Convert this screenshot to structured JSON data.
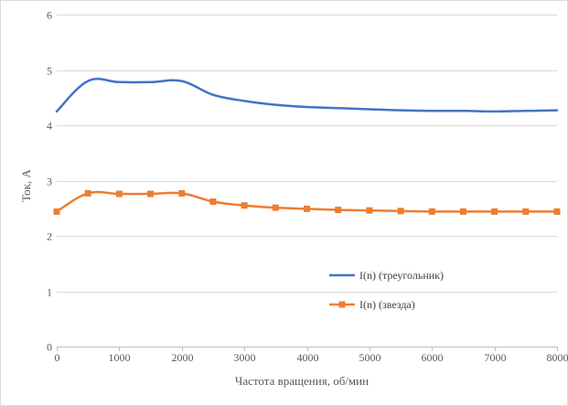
{
  "chart_data": {
    "type": "line",
    "title": "",
    "xlabel": "Частота вращения, об/мин",
    "ylabel": "Ток, А",
    "xlim": [
      0,
      8000
    ],
    "ylim": [
      0,
      6
    ],
    "x_ticks": [
      "0",
      "1000",
      "2000",
      "3000",
      "4000",
      "5000",
      "6000",
      "7000",
      "8000"
    ],
    "y_ticks": [
      "0",
      "1",
      "2",
      "3",
      "4",
      "5",
      "6"
    ],
    "grid": "horizontal",
    "legend_position": "bottom-right",
    "series": [
      {
        "name": "I(n) (треугольник)",
        "color": "#4472c4",
        "marker": "none",
        "x": [
          0,
          500,
          1000,
          1500,
          2000,
          2500,
          3000,
          3500,
          4000,
          4500,
          5000,
          5500,
          6000,
          6500,
          7000,
          7500,
          8000
        ],
        "values": [
          4.25,
          4.8,
          4.78,
          4.78,
          4.8,
          4.55,
          4.44,
          4.37,
          4.33,
          4.31,
          4.29,
          4.27,
          4.26,
          4.26,
          4.25,
          4.26,
          4.27
        ]
      },
      {
        "name": "I(n) (звезда)",
        "color": "#ed7d31",
        "marker": "square",
        "x": [
          0,
          500,
          1000,
          1500,
          2000,
          2500,
          3000,
          3500,
          4000,
          4500,
          5000,
          5500,
          6000,
          6500,
          7000,
          7500,
          8000
        ],
        "values": [
          2.44,
          2.77,
          2.76,
          2.76,
          2.77,
          2.62,
          2.55,
          2.51,
          2.49,
          2.47,
          2.46,
          2.45,
          2.44,
          2.44,
          2.44,
          2.44,
          2.44
        ]
      }
    ]
  }
}
